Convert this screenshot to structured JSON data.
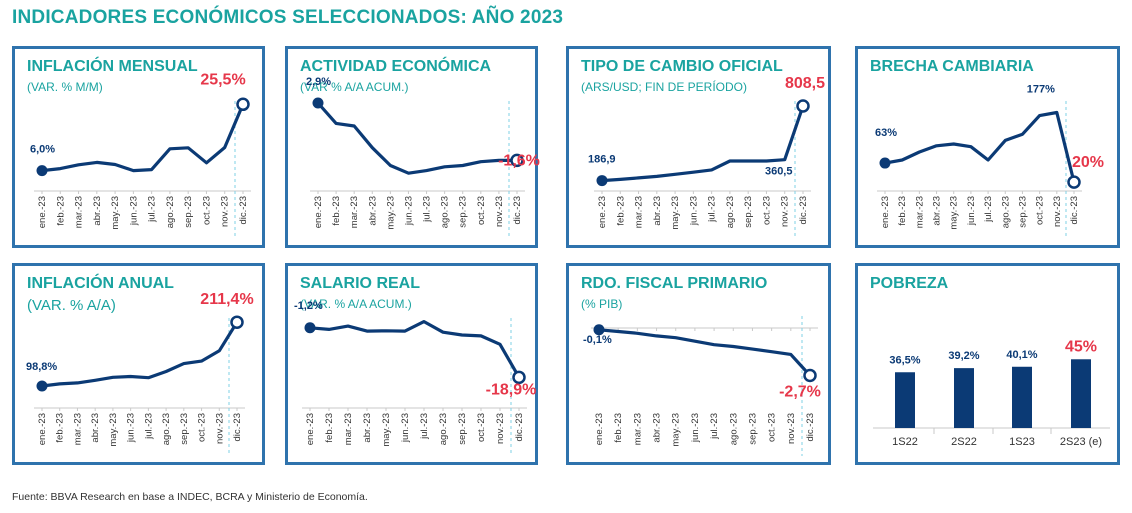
{
  "title": "INDICADORES ECONÓMICOS SELECCIONADOS: AÑO 2023",
  "source": "Fuente: BBVA Research en base a INDEC, BCRA y Ministerio de Economía.",
  "colors": {
    "line": "#0b3a75",
    "highlight": "#e6374a",
    "teal": "#1aa3a0",
    "border": "#2f73ad",
    "bar": "#0b3a75"
  },
  "months": [
    "ene.-23",
    "feb.-23",
    "mar.-23",
    "abr.-23",
    "may.-23",
    "jun.-23",
    "jul.-23",
    "ago.-23",
    "sep.-23",
    "oct.-23",
    "nov.-23",
    "dic.-23"
  ],
  "chart_data": [
    {
      "id": "inflacion-mensual",
      "type": "line",
      "title": "INFLACIÓN MENSUAL",
      "subtitle": "(VAR. % M/M)",
      "x": [
        "ene.-23",
        "feb.-23",
        "mar.-23",
        "abr.-23",
        "may.-23",
        "jun.-23",
        "jul.-23",
        "ago.-23",
        "sep.-23",
        "oct.-23",
        "nov.-23",
        "dic.-23"
      ],
      "values": [
        6.0,
        6.6,
        7.7,
        8.4,
        7.8,
        6.0,
        6.3,
        12.4,
        12.7,
        8.3,
        12.8,
        25.5
      ],
      "ylim": [
        0,
        30
      ],
      "labels": [
        {
          "index": 0,
          "text": "6,0%",
          "color": "line"
        },
        {
          "index": 11,
          "text": "25,5%",
          "color": "highlight"
        }
      ]
    },
    {
      "id": "actividad-economica",
      "type": "line",
      "title": "ACTIVIDAD ECONÓMICA",
      "subtitle": "(VAR % A/A ACUM.)",
      "x": [
        "ene.-23",
        "feb.-23",
        "mar.-23",
        "abr.-23",
        "may.-23",
        "jun.-23",
        "jul.-23",
        "ago.-23",
        "sep.-23",
        "oct.-23",
        "nov.-23",
        "dic.-23"
      ],
      "values": [
        2.9,
        1.3,
        1.1,
        -0.6,
        -2.0,
        -2.6,
        -2.4,
        -2.1,
        -2.0,
        -1.7,
        -1.6,
        -1.6
      ],
      "ylim": [
        -4,
        4
      ],
      "labels": [
        {
          "index": 0,
          "text": "2,9%",
          "color": "line"
        },
        {
          "index": 11,
          "text": "-1,6%",
          "color": "highlight"
        }
      ]
    },
    {
      "id": "tipo-de-cambio",
      "type": "line",
      "title": "TIPO DE CAMBIO OFICIAL",
      "subtitle": "(ARS/USD; FIN DE PERÍODO)",
      "x": [
        "ene.-23",
        "feb.-23",
        "mar.-23",
        "abr.-23",
        "may.-23",
        "jun.-23",
        "jul.-23",
        "ago.-23",
        "sep.-23",
        "oct.-23",
        "nov.-23",
        "dic.-23"
      ],
      "values": [
        186.9,
        197.0,
        209.0,
        222.0,
        239.0,
        257.0,
        276.0,
        350.0,
        350.0,
        350.0,
        360.5,
        808.5
      ],
      "ylim": [
        100,
        950
      ],
      "labels": [
        {
          "index": 0,
          "text": "186,9",
          "color": "line"
        },
        {
          "index": 10,
          "text": "360,5",
          "color": "line"
        },
        {
          "index": 11,
          "text": "808,5",
          "color": "highlight"
        }
      ]
    },
    {
      "id": "brecha-cambiaria",
      "type": "line",
      "title": "BRECHA CAMBIARIA",
      "subtitle": "",
      "x": [
        "ene.-23",
        "feb.-23",
        "mar.-23",
        "abr.-23",
        "may.-23",
        "jun.-23",
        "jul.-23",
        "ago.-23",
        "sep.-23",
        "oct.-23",
        "nov.-23",
        "dic.-23"
      ],
      "values": [
        63,
        70,
        88,
        102,
        106,
        100,
        70,
        114,
        128,
        170,
        177,
        20
      ],
      "ylim": [
        0,
        230
      ],
      "labels": [
        {
          "index": 0,
          "text": "63%",
          "color": "line"
        },
        {
          "index": 10,
          "text": "177%",
          "color": "line"
        },
        {
          "index": 11,
          "text": "20%",
          "color": "highlight"
        }
      ]
    },
    {
      "id": "inflacion-anual",
      "type": "line",
      "title": "INFLACIÓN ANUAL",
      "subtitle": "(VAR. % A/A)",
      "x": [
        "ene.-23",
        "feb.-23",
        "mar.-23",
        "abr.-23",
        "may.-23",
        "jun.-23",
        "jul.-23",
        "ago.-23",
        "sep.-23",
        "oct.-23",
        "nov.-23",
        "dic.-23"
      ],
      "values": [
        98.8,
        102.5,
        104.3,
        108.8,
        114.2,
        115.6,
        113.4,
        124.4,
        138.3,
        142.7,
        160.9,
        211.4
      ],
      "ylim": [
        60,
        240
      ],
      "labels": [
        {
          "index": 0,
          "text": "98,8%",
          "color": "line"
        },
        {
          "index": 11,
          "text": "211,4%",
          "color": "highlight"
        }
      ]
    },
    {
      "id": "salario-real",
      "type": "line",
      "title": "SALARIO REAL",
      "subtitle": "(VAR. % A/A ACUM.)",
      "x": [
        "ene.-23",
        "feb.-23",
        "mar.-23",
        "abr.-23",
        "may.-23",
        "jun.-23",
        "jul.-23",
        "ago.-23",
        "sep.-23",
        "oct.-23",
        "nov.-23",
        "dic.-23"
      ],
      "values": [
        -1.2,
        -1.8,
        -0.6,
        -2.4,
        -2.3,
        -2.4,
        1.0,
        -2.8,
        -3.8,
        -4.1,
        -7.1,
        -18.9
      ],
      "ylim": [
        -22,
        3
      ],
      "labels": [
        {
          "index": 0,
          "text": "-1,2%",
          "color": "line"
        },
        {
          "index": 11,
          "text": "-18,9%",
          "color": "highlight"
        }
      ]
    },
    {
      "id": "rdo-fiscal-primario",
      "type": "line",
      "title": "RDO. FISCAL PRIMARIO",
      "subtitle": "(% PIB)",
      "x": [
        "ene.-23",
        "feb.-23",
        "mar.-23",
        "abr.-23",
        "may.-23",
        "jun.-23",
        "jul.-23",
        "ago.-23",
        "sep.-23",
        "oct.-23",
        "nov.-23",
        "dic.-23"
      ],
      "values": [
        -0.1,
        -0.2,
        -0.3,
        -0.45,
        -0.55,
        -0.75,
        -0.95,
        -1.05,
        -1.2,
        -1.35,
        -1.5,
        -2.7
      ],
      "ylim": [
        -3.3,
        0.4
      ],
      "labels": [
        {
          "index": 0,
          "text": "-0,1%",
          "color": "line"
        },
        {
          "index": 11,
          "text": "-2,7%",
          "color": "highlight"
        }
      ]
    },
    {
      "id": "pobreza",
      "type": "bar",
      "title": "POBREZA",
      "subtitle": "",
      "categories": [
        "1S22",
        "2S22",
        "1S23",
        "2S23 (e)"
      ],
      "values": [
        36.5,
        39.2,
        40.1,
        45
      ],
      "ylim": [
        0,
        55
      ],
      "labels": [
        "36,5%",
        "39,2%",
        "40,1%",
        "45%"
      ],
      "label_colors": [
        "line",
        "line",
        "line",
        "highlight"
      ]
    }
  ]
}
